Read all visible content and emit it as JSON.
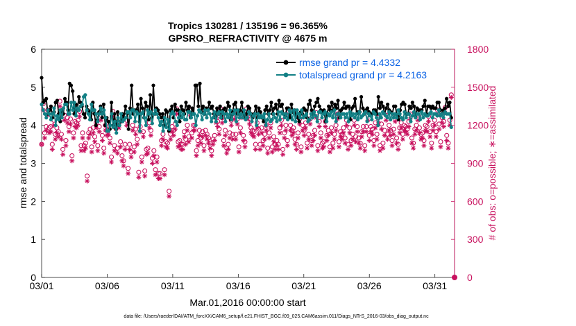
{
  "chart_data": {
    "type": "line",
    "title_line1": "Tropics 130281 / 135196 = 96.365%",
    "title_line2": "GPSRO_REFRACTIVITY @ 4675 m",
    "xlabel": "Mar.01,2016 00:00:00 start",
    "ylabel_left": "rmse and totalspread",
    "ylabel_right": "# of obs: o=possible; ∗=assimilated",
    "footnote": "data file: /Users/raeder/DAI/ATM_forcXX/CAM6_setup/f.e21.FHIST_BGC.f09_025.CAM6assim.011/Diags_NTrS_2016-03/obs_diag_output.nc",
    "xlim": [
      0,
      31.5
    ],
    "ylim_left": [
      0,
      6
    ],
    "ylim_right": [
      0,
      1800
    ],
    "x_ticks": [
      0,
      5,
      10,
      15,
      20,
      25,
      30
    ],
    "x_tick_labels": [
      "03/01",
      "03/06",
      "03/11",
      "03/16",
      "03/21",
      "03/26",
      "03/31"
    ],
    "y_left_ticks": [
      0,
      1,
      2,
      3,
      4,
      5,
      6
    ],
    "y_left_tick_labels": [
      "0",
      "1",
      "2",
      "3",
      "4",
      "5",
      "6"
    ],
    "y_right_ticks": [
      0,
      300,
      600,
      900,
      1200,
      1500,
      1800
    ],
    "y_right_tick_labels": [
      "0",
      "300",
      "600",
      "900",
      "1200",
      "1500",
      "1800"
    ],
    "legend_position": "top-right",
    "series": [
      {
        "name": "rmse grand pr = 4.4332",
        "axis": "left",
        "color": "#000000",
        "marker": "dot",
        "values": [
          5.25,
          4.6,
          4.65,
          4.7,
          4.3,
          4.4,
          4.5,
          4.2,
          4.35,
          4.6,
          4.65,
          4.3,
          4.1,
          4.4,
          4.3,
          4.7,
          4.6,
          4.4,
          5.1,
          5.05,
          4.9,
          4.3,
          4.55,
          4.4,
          4.75,
          4.6,
          4.5,
          4.3,
          4.2,
          4.5,
          4.4,
          4.35,
          4.15,
          4.6,
          4.3,
          4.0,
          4.15,
          4.35,
          4.5,
          4.2,
          4.55,
          4.0,
          4.2,
          4.1,
          3.9,
          4.6,
          4.0,
          4.3,
          3.9,
          4.35,
          4.0,
          4.1,
          4.3,
          4.2,
          4.5,
          4.3,
          3.9,
          4.45,
          5.05,
          4.3,
          4.4,
          4.4,
          4.55,
          4.1,
          4.7,
          4.45,
          4.2,
          4.6,
          4.5,
          4.15,
          4.8,
          4.2,
          5.05,
          4.3,
          4.45,
          4.4,
          4.3,
          4.2,
          4.3,
          4.0,
          4.4,
          4.35,
          3.85,
          4.4,
          4.5,
          4.2,
          4.55,
          4.4,
          4.4,
          4.1,
          4.5,
          4.4,
          4.3,
          4.6,
          4.4,
          4.5,
          4.2,
          4.45,
          4.3,
          5.05,
          5.05,
          4.5,
          5.1,
          4.35,
          4.5,
          4.3,
          4.45,
          4.4,
          4.6,
          4.45,
          4.5,
          4.3,
          4.2,
          4.45,
          4.3,
          4.5,
          4.2,
          4.4,
          4.45,
          4.3,
          4.6,
          4.5,
          4.15,
          4.35,
          4.55,
          4.6,
          4.3,
          4.3,
          4.4,
          4.6,
          4.35,
          4.2,
          4.3,
          4.5,
          4.45,
          4.3,
          4.2,
          4.3,
          4.5,
          4.2,
          4.45,
          4.35,
          4.2,
          4.1,
          4.4,
          4.5,
          4.3,
          4.4,
          4.6,
          4.3,
          4.45,
          4.55,
          4.3,
          4.65,
          4.5,
          4.55,
          4.3,
          4.25,
          4.45,
          4.45,
          4.2,
          4.55,
          4.35,
          4.4,
          4.25,
          4.2,
          4.1,
          4.35,
          4.3,
          4.45,
          4.4,
          4.2,
          4.55,
          4.65,
          4.4,
          4.3,
          4.5,
          4.6,
          4.7,
          4.5,
          4.4,
          4.35,
          4.4,
          4.1,
          4.3,
          4.5,
          4.4,
          4.6,
          4.4,
          4.55,
          4.45,
          4.65,
          4.2,
          4.4,
          4.45,
          4.6,
          4.45,
          4.5,
          4.5,
          4.15,
          4.45,
          4.5,
          4.7,
          4.3,
          4.35,
          4.35,
          4.75,
          4.45,
          4.3,
          4.4,
          4.45,
          4.35,
          4.3,
          4.3,
          4.4,
          4.4,
          4.3,
          4.75,
          4.45,
          4.6,
          4.5,
          4.3,
          4.45,
          4.55,
          4.4,
          4.35,
          4.3,
          4.5,
          4.5,
          4.25,
          4.15,
          4.4,
          4.55,
          4.6,
          4.55,
          4.3,
          4.3,
          4.5,
          4.45,
          4.6,
          4.5,
          4.25,
          4.45,
          4.4,
          4.4,
          4.4,
          4.5,
          4.65,
          4.3,
          4.5,
          4.5,
          4.45,
          4.5,
          4.45,
          4.45,
          4.6,
          4.6,
          4.4,
          4.3,
          4.4,
          4.45,
          4.7,
          4.5,
          4.6,
          4.2
        ]
      },
      {
        "name": "totalspread grand pr = 4.2163",
        "axis": "left",
        "color": "#128085",
        "marker": "dot",
        "values": [
          4.55,
          4.4,
          4.3,
          4.2,
          4.4,
          4.3,
          4.15,
          4.3,
          4.45,
          4.0,
          4.25,
          4.15,
          4.4,
          4.2,
          4.45,
          4.55,
          4.55,
          4.3,
          4.3,
          4.6,
          4.4,
          4.6,
          4.25,
          4.45,
          4.4,
          4.5,
          4.55,
          4.75,
          4.8,
          4.4,
          4.3,
          4.15,
          4.55,
          4.4,
          4.4,
          4.3,
          4.1,
          4.3,
          4.45,
          4.3,
          4.4,
          4.2,
          3.85,
          3.85,
          4.0,
          4.3,
          3.95,
          4.1,
          3.8,
          4.2,
          4.0,
          4.3,
          4.1,
          4.15,
          4.2,
          4.35,
          4.35,
          4.2,
          4.4,
          4.4,
          4.1,
          4.35,
          4.3,
          3.85,
          4.3,
          4.35,
          4.2,
          4.0,
          4.4,
          4.3,
          4.35,
          4.05,
          4.3,
          4.4,
          4.3,
          4.2,
          4.0,
          4.1,
          3.85,
          4.2,
          3.95,
          4.15,
          3.9,
          4.3,
          4.35,
          4.3,
          4.1,
          4.0,
          4.2,
          4.35,
          4.2,
          4.3,
          4.15,
          4.15,
          4.35,
          4.35,
          4.2,
          4.3,
          4.3,
          4.0,
          4.25,
          4.4,
          4.35,
          4.15,
          4.3,
          4.4,
          4.2,
          4.4,
          4.3,
          4.1,
          4.2,
          4.35,
          4.1,
          4.3,
          4.35,
          4.2,
          4.35,
          4.3,
          4.1,
          4.3,
          4.2,
          4.4,
          4.15,
          4.3,
          4.4,
          4.1,
          4.4,
          4.2,
          4.3,
          4.2,
          4.4,
          4.15,
          4.2,
          4.35,
          4.3,
          4.1,
          4.25,
          4.3,
          4.0,
          4.3,
          4.2,
          4.25,
          4.2,
          4.3,
          4.0,
          4.15,
          4.3,
          4.1,
          4.15,
          4.3,
          4.2,
          4.1,
          4.35,
          4.15,
          4.35,
          4.3,
          4.2,
          4.3,
          4.15,
          4.4,
          4.35,
          4.15,
          4.4,
          4.1,
          4.4,
          4.3,
          4.2,
          4.4,
          4.2,
          4.25,
          4.3,
          4.1,
          4.15,
          4.3,
          4.2,
          4.35,
          4.25,
          4.1,
          4.35,
          4.35,
          4.2,
          4.3,
          4.35,
          4.1,
          4.3,
          4.25,
          4.35,
          4.2,
          4.4,
          4.1,
          4.3,
          4.3,
          4.2,
          4.3,
          4.3,
          4.2,
          4.3,
          4.1,
          4.35,
          4.25,
          4.3,
          4.2,
          4.3,
          4.15,
          4.35,
          4.2,
          4.25,
          4.3,
          4.35,
          4.1,
          4.3,
          4.25,
          4.15,
          4.35,
          4.3,
          4.2,
          4.0,
          4.3,
          4.2,
          4.35,
          4.3,
          4.25,
          4.2,
          4.35,
          4.15,
          4.3,
          4.2,
          4.3,
          4.2,
          4.4,
          4.3,
          4.2,
          4.15,
          4.35,
          4.2,
          4.3,
          4.3,
          4.1,
          4.25,
          4.35,
          4.2,
          4.3,
          4.3,
          4.15,
          4.35,
          4.2,
          4.3,
          4.25,
          4.25,
          4.3,
          4.35,
          4.2,
          4.3,
          4.3,
          4.25,
          4.4,
          4.25,
          4.3,
          4.2,
          4.35,
          4.3,
          4.3,
          4.3,
          3.95
        ]
      },
      {
        "name": "possible",
        "axis": "right",
        "color": "#c8115e",
        "marker": "circle",
        "values": [
          1050,
          1370,
          1140,
          1190,
          1320,
          1180,
          1190,
          1050,
          1240,
          1130,
          1180,
          1150,
          1390,
          1130,
          1010,
          1280,
          1080,
          1260,
          1190,
          1250,
          960,
          1140,
          1230,
          1220,
          1240,
          1310,
          1040,
          1140,
          1040,
          1060,
          800,
          1140,
          1170,
          1030,
          1180,
          1110,
          1220,
          1040,
          1190,
          1280,
          1120,
          1020,
          1200,
          1160,
          1170,
          1100,
          950,
          1310,
          1040,
          1210,
          1020,
          1220,
          1070,
          960,
          920,
          1050,
          1240,
          860,
          1050,
          990,
          1200,
          1030,
          1170,
          1090,
          830,
          1190,
          950,
          1150,
          840,
          1010,
          1020,
          1220,
          1160,
          940,
          1000,
          850,
          950,
          820,
          820,
          1080,
          1130,
          850,
          1070,
          1060,
          680,
          1130,
          1190,
          1160,
          1210,
          1330,
          1070,
          1080,
          1050,
          1050,
          1150,
          1090,
          1200,
          1110,
          1320,
          1140,
          1200,
          1200,
          1000,
          1080,
          1160,
          1100,
          1150,
          1040,
          1160,
          1130,
          1100,
          1060,
          1000,
          1090,
          1120,
          1260,
          1230,
          1170,
          1330,
          1260,
          1080,
          1160,
          1020,
          1050,
          1140,
          1240,
          1130,
          1290,
          1130,
          1250,
          1030,
          1180,
          1300,
          1120,
          1070,
          1330,
          1290,
          1250,
          1180,
          1160,
          1150,
          1050,
          1220,
          1170,
          1050,
          1180,
          1080,
          1130,
          1200,
          1020,
          1140,
          1220,
          1030,
          1110,
          1050,
          1080,
          1050,
          1180,
          1240,
          1010,
          1140,
          1200,
          1080,
          1310,
          1200,
          1160,
          1180,
          1090,
          1050,
          1140,
          1250,
          1030,
          1200,
          1160,
          1220,
          1060,
          1130,
          1250,
          1080,
          1120,
          1160,
          1300,
          1040,
          1230,
          1140,
          1060,
          1070,
          1230,
          1120,
          1160,
          1030,
          1180,
          1060,
          1130,
          1200,
          1290,
          1070,
          1150,
          1130,
          1180,
          1100,
          1240,
          1050,
          1180,
          1080,
          1130,
          1240,
          1110,
          1190,
          1100,
          1060,
          1150,
          1190,
          1040,
          1190,
          1280,
          1120,
          1190,
          1170,
          1080,
          1220,
          1130,
          1260,
          1040,
          1210,
          1060,
          1160,
          1280,
          1130,
          1200,
          1160,
          1080,
          1170,
          1270,
          1100,
          1050,
          1180,
          1220,
          1130,
          1200,
          1190,
          1170,
          1230,
          1290,
          1100,
          1060,
          1170,
          1200,
          1280,
          1180,
          1130,
          1140,
          1080,
          1200,
          1190,
          1270,
          1150,
          1060,
          1200,
          1240,
          1150,
          1320,
          1210,
          1070,
          1260,
          1230,
          1340,
          1120,
          1060,
          1240,
          1440
        ]
      },
      {
        "name": "assimilated",
        "axis": "right",
        "color": "#c8115e",
        "marker": "star",
        "values": [
          1050,
          1320,
          1100,
          1160,
          1280,
          1140,
          1150,
          1010,
          1200,
          1090,
          1140,
          1110,
          1350,
          1090,
          970,
          1240,
          1040,
          1220,
          1150,
          1210,
          920,
          1100,
          1190,
          1180,
          1200,
          1270,
          1000,
          1100,
          1000,
          1020,
          760,
          1100,
          1130,
          990,
          1140,
          1070,
          1180,
          1000,
          1150,
          1240,
          1080,
          980,
          1160,
          1120,
          1130,
          1060,
          910,
          1270,
          1000,
          1170,
          980,
          1180,
          1030,
          920,
          880,
          1010,
          1200,
          820,
          1010,
          950,
          1160,
          990,
          1130,
          1050,
          790,
          1150,
          910,
          1110,
          800,
          970,
          980,
          1180,
          1120,
          900,
          960,
          810,
          910,
          780,
          780,
          1040,
          1090,
          810,
          1030,
          1020,
          640,
          1090,
          1150,
          1120,
          1170,
          1290,
          1030,
          1040,
          1010,
          1010,
          1110,
          1050,
          1160,
          1070,
          1280,
          1100,
          1160,
          1160,
          960,
          1040,
          1120,
          1060,
          1110,
          1000,
          1120,
          1090,
          1060,
          1020,
          960,
          1050,
          1080,
          1220,
          1190,
          1130,
          1290,
          1220,
          1040,
          1120,
          980,
          1010,
          1100,
          1200,
          1090,
          1250,
          1090,
          1210,
          990,
          1140,
          1260,
          1080,
          1030,
          1290,
          1250,
          1210,
          1140,
          1120,
          1110,
          1010,
          1180,
          1130,
          1010,
          1140,
          1040,
          1090,
          1160,
          980,
          1100,
          1180,
          990,
          1070,
          1010,
          1040,
          1010,
          1140,
          1200,
          970,
          1100,
          1160,
          1040,
          1270,
          1160,
          1120,
          1140,
          1050,
          1010,
          1100,
          1210,
          990,
          1160,
          1120,
          1180,
          1020,
          1090,
          1210,
          1040,
          1080,
          1120,
          1260,
          1000,
          1190,
          1100,
          1020,
          1030,
          1190,
          1080,
          1120,
          990,
          1140,
          1020,
          1090,
          1160,
          1250,
          1030,
          1110,
          1090,
          1140,
          1060,
          1200,
          1010,
          1140,
          1040,
          1090,
          1200,
          1070,
          1150,
          1060,
          1020,
          1110,
          1150,
          1000,
          1150,
          1240,
          1080,
          1150,
          1130,
          1040,
          1180,
          1090,
          1220,
          1000,
          1170,
          1020,
          1120,
          1240,
          1090,
          1160,
          1120,
          1040,
          1130,
          1230,
          1060,
          1010,
          1140,
          1180,
          1090,
          1160,
          1150,
          1130,
          1190,
          1250,
          1060,
          1020,
          1130,
          1160,
          1240,
          1140,
          1090,
          1100,
          1040,
          1160,
          1150,
          1230,
          1110,
          1020,
          1160,
          1200,
          1110,
          1280,
          1170,
          1030,
          1220,
          1190,
          1300,
          1080,
          1020,
          1200,
          1420
        ]
      }
    ],
    "endpoint_marker": {
      "x": 31.5,
      "y_right": 0
    }
  }
}
